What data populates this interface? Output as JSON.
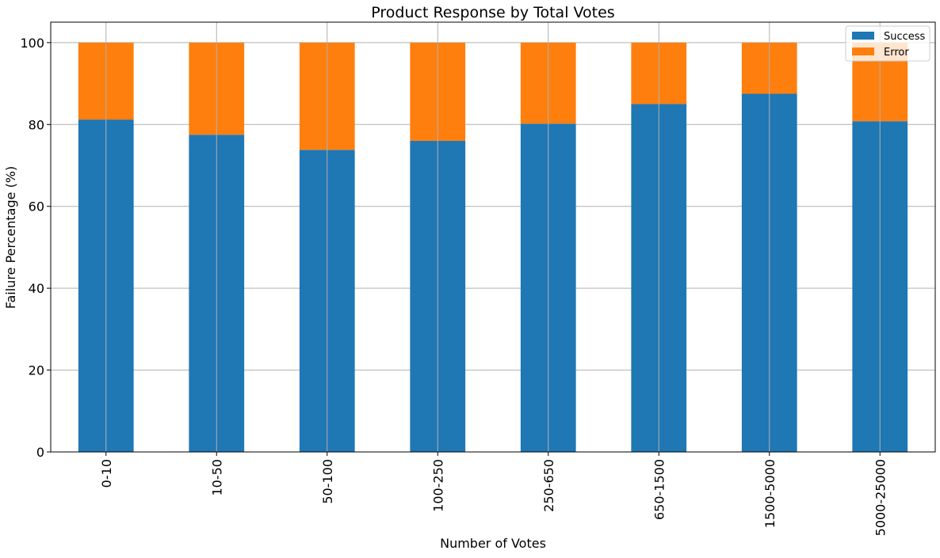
{
  "chart_data": {
    "type": "bar",
    "stacked": true,
    "title": "Product Response by Total Votes",
    "xlabel": "Number of Votes",
    "ylabel": "Failure Percentage (%)",
    "categories": [
      "0-10",
      "10-50",
      "50-100",
      "100-250",
      "250-650",
      "650-1500",
      "1500-5000",
      "5000-25000"
    ],
    "series": [
      {
        "name": "Success",
        "color": "#1f77b4",
        "values": [
          81.2,
          77.5,
          73.8,
          76.0,
          80.2,
          85.0,
          87.5,
          80.8
        ]
      },
      {
        "name": "Error",
        "color": "#ff7f0e",
        "values": [
          18.8,
          22.5,
          26.2,
          24.0,
          19.8,
          15.0,
          12.5,
          19.2
        ]
      }
    ],
    "ylim": [
      0,
      105
    ],
    "yticks": [
      0,
      20,
      40,
      60,
      80,
      100
    ],
    "grid": true,
    "legend_position": "top-right"
  }
}
